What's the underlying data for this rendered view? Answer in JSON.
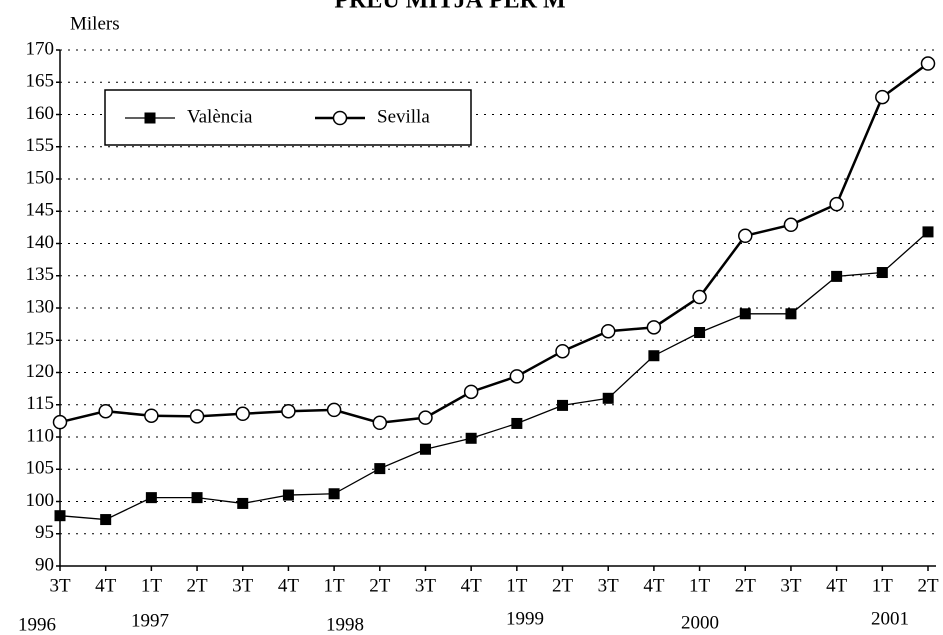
{
  "chart_data": {
    "type": "line",
    "title": "PREU MITJÀ PER M",
    "y_label": "Milers",
    "categories": [
      "3T",
      "4T",
      "1T",
      "2T",
      "3T",
      "4T",
      "1T",
      "2T",
      "3T",
      "4T",
      "1T",
      "2T",
      "3T",
      "4T",
      "1T",
      "2T",
      "3T",
      "4T",
      "1T",
      "2T"
    ],
    "year_labels": [
      "1996",
      "1997",
      "1998",
      "1999",
      "2000",
      "2001"
    ],
    "series": [
      {
        "name": "València",
        "color": "#000000",
        "marker": "square",
        "values": [
          97.8,
          97.2,
          100.6,
          100.6,
          99.7,
          101.0,
          101.2,
          105.1,
          108.1,
          109.8,
          112.1,
          114.9,
          116.0,
          122.6,
          126.2,
          129.1,
          129.1,
          134.9,
          135.5,
          141.8
        ]
      },
      {
        "name": "Sevilla",
        "color": "#000000",
        "marker": "circle",
        "values": [
          112.3,
          114.0,
          113.3,
          113.2,
          113.6,
          114.0,
          114.2,
          112.2,
          113.0,
          117.0,
          119.4,
          123.3,
          126.4,
          127.0,
          131.7,
          141.2,
          142.9,
          146.1,
          162.7,
          167.9
        ]
      }
    ],
    "ylim": [
      90,
      170
    ],
    "yticks": [
      90,
      95,
      100,
      105,
      110,
      115,
      120,
      125,
      130,
      135,
      140,
      145,
      150,
      155,
      160,
      165,
      170
    ],
    "grid": true,
    "legend": "top-left"
  }
}
